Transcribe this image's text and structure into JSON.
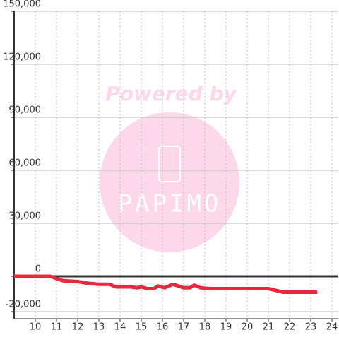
{
  "chart_data": {
    "type": "line",
    "watermark": {
      "title": "Powered by",
      "brand": "PAPIMO"
    },
    "x": [
      9,
      10.7,
      11.3,
      12,
      12.5,
      13,
      13.5,
      13.8,
      14.5,
      14.8,
      15.0,
      15.3,
      15.6,
      15.8,
      16.1,
      16.5,
      17.0,
      17.3,
      17.5,
      17.8,
      18.2,
      18.5,
      21.0,
      21.7,
      23.3
    ],
    "series": [
      {
        "color": "#e8283c",
        "values": [
          0,
          0,
          -2500,
          -3000,
          -4000,
          -4500,
          -4500,
          -6000,
          -6000,
          -6500,
          -6000,
          -7000,
          -7000,
          -5500,
          -6500,
          -4500,
          -6500,
          -6500,
          -5000,
          -6500,
          -7000,
          -7000,
          -7000,
          -9000,
          -9000
        ]
      }
    ],
    "xlim": [
      9,
      24.3
    ],
    "xticks": [
      10,
      11,
      12,
      13,
      14,
      15,
      16,
      17,
      18,
      19,
      20,
      21,
      22,
      23,
      24
    ],
    "ylim": [
      -24000,
      150000
    ],
    "yticks": [
      {
        "value": -20000,
        "label": "-20,000"
      },
      0,
      {
        "value": 30000,
        "label": "30,000"
      },
      {
        "value": 60000,
        "label": "60,000"
      },
      {
        "value": 90000,
        "label": "90,000"
      },
      {
        "value": 120000,
        "label": "120,000"
      },
      {
        "value": 150000,
        "label": "150,000"
      }
    ],
    "grid": true
  }
}
